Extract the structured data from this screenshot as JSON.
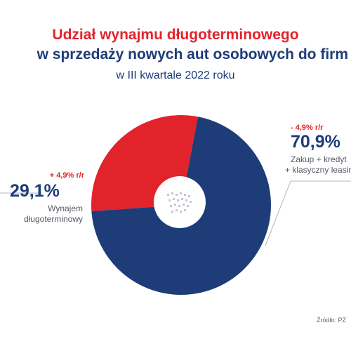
{
  "title_line1": "Udział wynajmu długoterminowego",
  "title_line2": "w sprzedaży nowych aut osobowych do firm",
  "subtitle": "w III kwartale 2022 roku",
  "source": "Źródło: PZ",
  "colors": {
    "red": "#e3232b",
    "navy": "#1d3c78",
    "inner": "#ffffff"
  },
  "chart_data": {
    "type": "pie",
    "title": "Udział wynajmu długoterminowego w sprzedaży nowych aut osobowych do firm",
    "subtitle": "w III kwartale 2022 roku",
    "slices": [
      {
        "label_line1": "Wynajem",
        "label_line2": "długoterminowy",
        "value": 29.1,
        "value_text": "29,1%",
        "change_text": "+ 4,9% r/r",
        "color": "#e3232b"
      },
      {
        "label_line1": "Zakup + kredyt",
        "label_line2": "+ klasyczny leasing",
        "value": 70.9,
        "value_text": "70,9%",
        "change_text": "- 4,9% r/r",
        "color": "#1d3c78"
      }
    ]
  }
}
